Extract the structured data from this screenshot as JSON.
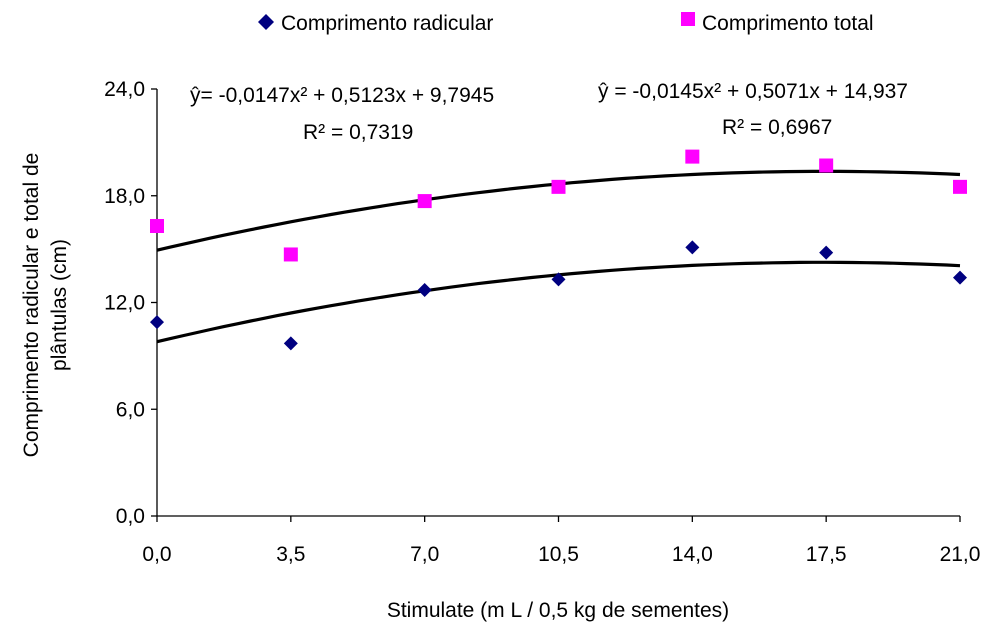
{
  "chart_data": {
    "type": "scatter",
    "title": "",
    "xlabel": "Stimulate (m L / 0,5 kg de sementes)",
    "ylabel_line1": "Comprimento radicular e total de",
    "ylabel_line2": "plântulas (cm)",
    "xlim": [
      0,
      21
    ],
    "ylim": [
      0,
      24
    ],
    "x_ticks": [
      0,
      3.5,
      7,
      10.5,
      14,
      17.5,
      21
    ],
    "x_tick_labels": [
      "0,0",
      "3,5",
      "7,0",
      "10,5",
      "14,0",
      "17,5",
      "21,0"
    ],
    "y_ticks": [
      0,
      6,
      12,
      18,
      24
    ],
    "y_tick_labels": [
      "0,0",
      "6,0",
      "12,0",
      "18,0",
      "24,0"
    ],
    "grid": false,
    "legend_position": "top",
    "series": [
      {
        "name": "Comprimento radicular",
        "marker": "diamond",
        "color": "#000080",
        "x": [
          0,
          3.5,
          7,
          10.5,
          14,
          17.5,
          21
        ],
        "y": [
          10.9,
          9.7,
          12.7,
          13.3,
          15.1,
          14.8,
          13.4
        ],
        "trend": {
          "a": -0.0147,
          "b": 0.5123,
          "c": 9.7945
        },
        "equation": "ŷ= -0,0147x² + 0,5123x + 9,7945",
        "r2": "R² = 0,7319"
      },
      {
        "name": "Comprimento total",
        "marker": "square",
        "color": "#ff00ff",
        "x": [
          0,
          3.5,
          7,
          10.5,
          14,
          17.5,
          21
        ],
        "y": [
          16.3,
          14.7,
          17.7,
          18.5,
          20.2,
          19.7,
          18.5
        ],
        "trend": {
          "a": -0.0145,
          "b": 0.5071,
          "c": 14.937
        },
        "equation": "ŷ = -0,0145x² + 0,5071x + 14,937",
        "r2": "R² = 0,6967"
      }
    ]
  },
  "colors": {
    "axis": "#000000",
    "trendline": "#000000"
  }
}
